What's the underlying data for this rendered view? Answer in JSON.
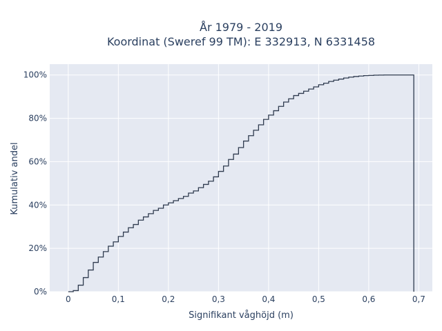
{
  "chart_data": {
    "type": "line",
    "line_shape": "step",
    "title_lines": [
      "År 1979 - 2019",
      "Koordinat (Sweref 99 TM): E 332913, N 6331458"
    ],
    "xlabel": "Signifikant våghöjd (m)",
    "ylabel": "Kumulativ andel",
    "xlim": [
      -0.037,
      0.727
    ],
    "ylim": [
      0,
      1.05
    ],
    "x_ticks": [
      0,
      0.1,
      0.2,
      0.3,
      0.4,
      0.5,
      0.6,
      0.7
    ],
    "x_tick_labels": [
      "0",
      "0,1",
      "0,2",
      "0,3",
      "0,4",
      "0,5",
      "0,6",
      "0,7"
    ],
    "y_ticks": [
      0,
      0.2,
      0.4,
      0.6,
      0.8,
      1.0
    ],
    "y_tick_labels": [
      "0%",
      "20%",
      "40%",
      "60%",
      "80%",
      "100%"
    ],
    "grid": true,
    "plot_bg": "#e5e9f2",
    "line_color": "#2e3a4e",
    "series": [
      {
        "x": [
          0,
          0.01,
          0.02,
          0.03,
          0.04,
          0.05,
          0.06,
          0.07,
          0.08,
          0.09,
          0.1,
          0.11,
          0.12,
          0.13,
          0.14,
          0.15,
          0.16,
          0.17,
          0.18,
          0.19,
          0.2,
          0.21,
          0.22,
          0.23,
          0.24,
          0.25,
          0.26,
          0.27,
          0.28,
          0.29,
          0.3,
          0.31,
          0.32,
          0.33,
          0.34,
          0.35,
          0.36,
          0.37,
          0.38,
          0.39,
          0.4,
          0.41,
          0.42,
          0.43,
          0.44,
          0.45,
          0.46,
          0.47,
          0.48,
          0.49,
          0.5,
          0.51,
          0.52,
          0.53,
          0.54,
          0.55,
          0.56,
          0.57,
          0.58,
          0.59,
          0.6,
          0.61,
          0.62,
          0.63,
          0.64,
          0.65,
          0.66,
          0.67,
          0.68,
          0.69
        ],
        "y": [
          0.0,
          0.005,
          0.03,
          0.065,
          0.1,
          0.135,
          0.16,
          0.185,
          0.21,
          0.23,
          0.255,
          0.275,
          0.295,
          0.31,
          0.33,
          0.345,
          0.36,
          0.375,
          0.385,
          0.4,
          0.41,
          0.42,
          0.43,
          0.44,
          0.455,
          0.465,
          0.48,
          0.495,
          0.51,
          0.53,
          0.555,
          0.58,
          0.61,
          0.635,
          0.665,
          0.695,
          0.72,
          0.745,
          0.77,
          0.795,
          0.815,
          0.835,
          0.855,
          0.875,
          0.89,
          0.905,
          0.915,
          0.925,
          0.935,
          0.945,
          0.955,
          0.962,
          0.97,
          0.976,
          0.981,
          0.986,
          0.99,
          0.993,
          0.995,
          0.997,
          0.998,
          0.999,
          0.9995,
          1.0,
          1.0,
          1.0,
          1.0,
          1.0,
          1.0,
          1.0
        ]
      }
    ]
  }
}
